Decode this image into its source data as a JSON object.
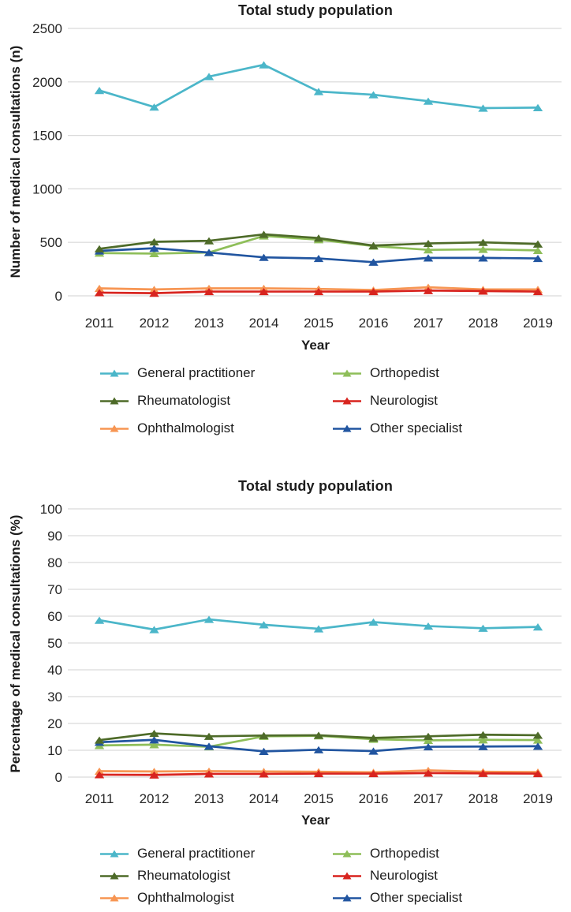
{
  "figure": {
    "background": "#ffffff",
    "grid_color": "#d9d9d9",
    "text_color": "#1c1c1c",
    "tick_color": "#262626"
  },
  "chart_data": [
    {
      "type": "line",
      "title": "Total study population",
      "xlabel": "Year",
      "ylabel": "Number of medical consultations (n)",
      "x_categories": [
        "2011",
        "2012",
        "2013",
        "2014",
        "2015",
        "2016",
        "2017",
        "2018",
        "2019"
      ],
      "ylim": [
        0,
        2500
      ],
      "ytick_interval": 500,
      "grid": "horizontal",
      "legend_position": "bottom-two-columns",
      "marker": "triangle-up",
      "series": [
        {
          "name": "General practitioner",
          "color": "#4bb6c9",
          "values": [
            1920,
            1765,
            2050,
            2160,
            1910,
            1880,
            1820,
            1755,
            1760
          ]
        },
        {
          "name": "Rheumatologist",
          "color": "#4e6b29",
          "values": [
            440,
            505,
            515,
            575,
            540,
            470,
            490,
            500,
            485
          ]
        },
        {
          "name": "Ophthalmologist",
          "color": "#f79552",
          "values": [
            70,
            60,
            70,
            70,
            65,
            55,
            80,
            60,
            60
          ]
        },
        {
          "name": "Orthopedist",
          "color": "#8ebe59",
          "values": [
            400,
            395,
            405,
            560,
            525,
            465,
            430,
            435,
            425
          ]
        },
        {
          "name": "Neurologist",
          "color": "#d8241f",
          "values": [
            30,
            25,
            40,
            40,
            40,
            40,
            50,
            45,
            40
          ]
        },
        {
          "name": "Other specialist",
          "color": "#2155a0",
          "values": [
            420,
            445,
            405,
            360,
            350,
            315,
            355,
            355,
            350
          ]
        }
      ],
      "draw_order": [
        "General practitioner",
        "Orthopedist",
        "Other specialist",
        "Rheumatologist",
        "Ophthalmologist",
        "Neurologist"
      ]
    },
    {
      "type": "line",
      "title": "Total study population",
      "xlabel": "Year",
      "ylabel": "Percentage of medical consultations (%)",
      "x_categories": [
        "2011",
        "2012",
        "2013",
        "2014",
        "2015",
        "2016",
        "2017",
        "2018",
        "2019"
      ],
      "ylim": [
        0,
        100
      ],
      "ytick_interval": 10,
      "grid": "horizontal",
      "legend_position": "bottom-two-columns",
      "marker": "triangle-up",
      "series": [
        {
          "name": "General practitioner",
          "color": "#4bb6c9",
          "values": [
            58.5,
            55.0,
            58.8,
            56.8,
            55.3,
            57.8,
            56.3,
            55.5,
            56.0
          ]
        },
        {
          "name": "Rheumatologist",
          "color": "#4e6b29",
          "values": [
            13.8,
            16.3,
            15.2,
            15.5,
            15.6,
            14.6,
            15.2,
            15.8,
            15.6
          ]
        },
        {
          "name": "Ophthalmologist",
          "color": "#f79552",
          "values": [
            2.2,
            2.1,
            2.2,
            2.1,
            2.0,
            1.8,
            2.5,
            2.0,
            1.9
          ]
        },
        {
          "name": "Orthopedist",
          "color": "#8ebe59",
          "values": [
            11.8,
            12.1,
            11.3,
            15.2,
            15.4,
            14.1,
            13.7,
            13.9,
            13.8
          ]
        },
        {
          "name": "Neurologist",
          "color": "#d8241f",
          "values": [
            0.9,
            0.8,
            1.2,
            1.2,
            1.3,
            1.3,
            1.5,
            1.4,
            1.3
          ]
        },
        {
          "name": "Other specialist",
          "color": "#2155a0",
          "values": [
            13.0,
            13.9,
            11.5,
            9.6,
            10.2,
            9.7,
            11.3,
            11.4,
            11.5
          ]
        }
      ],
      "draw_order": [
        "General practitioner",
        "Orthopedist",
        "Other specialist",
        "Rheumatologist",
        "Ophthalmologist",
        "Neurologist"
      ]
    }
  ]
}
